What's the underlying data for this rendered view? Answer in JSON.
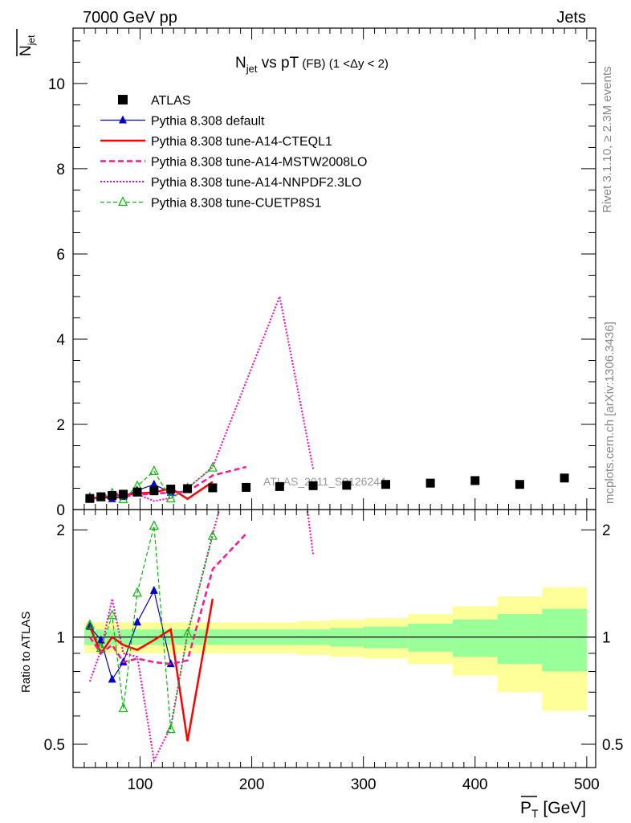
{
  "header": {
    "left": "7000 GeV pp",
    "right": "Jets"
  },
  "side_labels": {
    "rivet": "Rivet 3.1.10, ≥ 2.3M events",
    "mcplots": "mcplots.cern.ch [arXiv:1306.3436]"
  },
  "chart_data": [
    {
      "type": "line",
      "title_main": "N",
      "title_sub": "jet",
      "title_rest": " vs pT",
      "title_small": " (FB)  (1 <Δy < 2)",
      "ylabel_main": "N",
      "ylabel_sub": "jet",
      "watermark": "ATLAS_2011_S9126244",
      "xlim": [
        40,
        508
      ],
      "ylim": [
        0,
        11.3
      ],
      "yticks": [
        0,
        2,
        4,
        6,
        8,
        10
      ],
      "yticklabels": [
        "0",
        "2",
        "4",
        "6",
        "8",
        "10"
      ],
      "legend_position": "top-left",
      "series": [
        {
          "name": "ATLAS",
          "color": "#000000",
          "style": "marker",
          "marker": "square",
          "x": [
            55,
            65,
            75,
            85,
            97.5,
            112.5,
            127.5,
            142.5,
            165,
            195,
            225,
            255,
            285,
            320,
            360,
            400,
            440,
            480
          ],
          "y": [
            0.26,
            0.3,
            0.33,
            0.36,
            0.41,
            0.44,
            0.48,
            0.49,
            0.51,
            0.52,
            0.54,
            0.56,
            0.57,
            0.59,
            0.62,
            0.68,
            0.59,
            0.74
          ]
        },
        {
          "name": "Pythia 8.308 default",
          "color": "#0000cc",
          "style": "solid-thin",
          "marker": "triangle",
          "x": [
            55,
            65,
            75,
            85,
            97.5,
            112.5,
            127.5
          ],
          "y": [
            0.28,
            0.29,
            0.25,
            0.3,
            0.45,
            0.59,
            0.4
          ]
        },
        {
          "name": "Pythia 8.308 tune-A14-CTEQL1",
          "color": "#ff0000",
          "style": "solid-thick",
          "marker": "none",
          "x": [
            55,
            65,
            75,
            85,
            97.5,
            112.5,
            127.5,
            142.5,
            165
          ],
          "y": [
            0.28,
            0.27,
            0.33,
            0.34,
            0.38,
            0.4,
            0.5,
            0.25,
            0.65
          ]
        },
        {
          "name": "Pythia 8.308 tune-A14-MSTW2008LO",
          "color": "#ff1493",
          "style": "dashed",
          "marker": "none",
          "x": [
            55,
            65,
            75,
            85,
            97.5,
            112.5,
            127.5,
            142.5,
            165,
            195
          ],
          "y": [
            0.26,
            0.27,
            0.31,
            0.3,
            0.35,
            0.37,
            0.4,
            0.42,
            0.8,
            1.0
          ]
        },
        {
          "name": "Pythia 8.308 tune-A14-NNPDF2.3LO",
          "color": "#ff00cc",
          "style": "dotted",
          "marker": "none",
          "x": [
            55,
            65,
            75,
            85,
            97.5,
            112.5,
            127.5,
            142.5,
            165,
            225,
            255
          ],
          "y": [
            0.2,
            0.28,
            0.42,
            0.32,
            0.36,
            0.2,
            0.27,
            0.5,
            1.0,
            5.0,
            0.95
          ]
        },
        {
          "name": "Pythia 8.308 tune-CUETP8S1",
          "color": "#00bb00",
          "style": "dashed-thin",
          "marker": "open-triangle",
          "x": [
            55,
            65,
            75,
            85,
            97.5,
            112.5,
            127.5,
            142.5,
            165
          ],
          "y": [
            0.28,
            0.28,
            0.38,
            0.24,
            0.55,
            0.9,
            0.26,
            0.5,
            0.98
          ]
        }
      ]
    },
    {
      "type": "line",
      "ylabel": "Ratio to ATLAS",
      "xlabel_main": "P",
      "xlabel_sub": "T",
      "xlabel_rest": " [GeV]",
      "xlim": [
        40,
        508
      ],
      "ylim": [
        0.43,
        2.28
      ],
      "log_y": true,
      "xticks": [
        100,
        200,
        300,
        400,
        500
      ],
      "xticklabels": [
        "100",
        "200",
        "300",
        "400",
        "500"
      ],
      "yticks": [
        0.5,
        1,
        2
      ],
      "yticklabels": [
        "0.5",
        "1",
        "2"
      ],
      "reference_bins": [
        [
          50,
          60
        ],
        [
          60,
          70
        ],
        [
          70,
          80
        ],
        [
          80,
          90
        ],
        [
          90,
          105
        ],
        [
          105,
          120
        ],
        [
          120,
          135
        ],
        [
          135,
          150
        ],
        [
          150,
          180
        ],
        [
          180,
          210
        ],
        [
          210,
          240
        ],
        [
          240,
          270
        ],
        [
          270,
          300
        ],
        [
          300,
          340
        ],
        [
          340,
          380
        ],
        [
          380,
          420
        ],
        [
          420,
          460
        ],
        [
          460,
          500
        ]
      ],
      "band_inner": [
        0.05,
        0.05,
        0.05,
        0.05,
        0.05,
        0.05,
        0.05,
        0.05,
        0.05,
        0.05,
        0.05,
        0.05,
        0.06,
        0.07,
        0.09,
        0.12,
        0.16,
        0.2
      ],
      "band_outer": [
        0.1,
        0.1,
        0.1,
        0.1,
        0.1,
        0.1,
        0.1,
        0.1,
        0.1,
        0.1,
        0.1,
        0.11,
        0.12,
        0.13,
        0.16,
        0.22,
        0.3,
        0.38
      ],
      "series": [
        {
          "name": "Pythia 8.308 default",
          "color": "#0000cc",
          "x": [
            55,
            65,
            75,
            85,
            97.5,
            112.5,
            127.5
          ],
          "y": [
            1.07,
            0.98,
            0.76,
            0.85,
            1.1,
            1.35,
            0.84
          ]
        },
        {
          "name": "Pythia 8.308 tune-A14-CTEQL1",
          "color": "#ff0000",
          "x": [
            55,
            65,
            75,
            85,
            97.5,
            112.5,
            127.5,
            142.5,
            165
          ],
          "y": [
            1.07,
            0.9,
            1.0,
            0.95,
            0.92,
            0.98,
            1.05,
            0.51,
            1.28
          ]
        },
        {
          "name": "Pythia 8.308 tune-A14-MSTW2008LO",
          "color": "#ff1493",
          "x": [
            55,
            65,
            75,
            85,
            97.5,
            112.5,
            127.5,
            142.5,
            165,
            195
          ],
          "y": [
            1.0,
            0.9,
            0.95,
            0.85,
            0.87,
            0.85,
            0.84,
            0.86,
            1.55,
            1.95
          ]
        },
        {
          "name": "Pythia 8.308 tune-A14-NNPDF2.3LO",
          "color": "#ff00cc",
          "x": [
            55,
            65,
            75,
            85,
            97.5,
            112.5,
            127.5,
            142.5,
            165,
            225,
            255
          ],
          "y": [
            0.75,
            0.92,
            1.28,
            0.9,
            0.88,
            0.45,
            0.56,
            1.02,
            1.95,
            9.2,
            1.7
          ]
        },
        {
          "name": "Pythia 8.308 tune-CUETP8S1",
          "color": "#00bb00",
          "x": [
            55,
            65,
            75,
            85,
            97.5,
            112.5,
            127.5,
            142.5,
            165
          ],
          "y": [
            1.08,
            0.93,
            1.15,
            0.63,
            1.33,
            2.05,
            0.55,
            1.02,
            1.92
          ]
        }
      ]
    }
  ]
}
